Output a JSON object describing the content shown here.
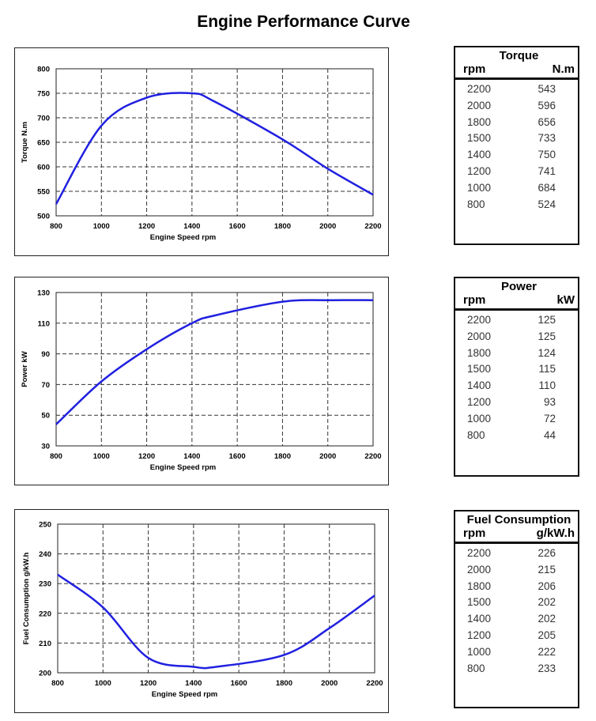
{
  "title": "Engine Performance Curve",
  "colors": {
    "curve": "#2020e0",
    "grid": "#333333"
  },
  "chart_data": [
    {
      "type": "line",
      "title": "",
      "xlabel": "Engine Speed rpm",
      "ylabel": "Torque N.m",
      "xlim": [
        800,
        2200
      ],
      "ylim": [
        500,
        800
      ],
      "xticks": [
        800,
        1000,
        1200,
        1400,
        1600,
        1800,
        2000,
        2200
      ],
      "yticks": [
        500,
        550,
        600,
        650,
        700,
        750,
        800
      ],
      "grid": true,
      "x": [
        800,
        1000,
        1200,
        1400,
        1500,
        1800,
        2000,
        2200
      ],
      "y": [
        524,
        684,
        741,
        750,
        733,
        656,
        596,
        543
      ]
    },
    {
      "type": "line",
      "title": "",
      "xlabel": "Engine Speed rpm",
      "ylabel": "Power kW",
      "xlim": [
        800,
        2200
      ],
      "ylim": [
        30,
        130
      ],
      "xticks": [
        800,
        1000,
        1200,
        1400,
        1600,
        1800,
        2000,
        2200
      ],
      "yticks": [
        30,
        50,
        70,
        90,
        110,
        130
      ],
      "grid": true,
      "x": [
        800,
        1000,
        1200,
        1400,
        1500,
        1800,
        2000,
        2200
      ],
      "y": [
        44,
        72,
        93,
        110,
        115,
        124,
        125,
        125
      ]
    },
    {
      "type": "line",
      "title": "",
      "xlabel": "Engine Speed rpm",
      "ylabel": "Fuel Consumption g/kW.h",
      "xlim": [
        800,
        2200
      ],
      "ylim": [
        200,
        250
      ],
      "xticks": [
        800,
        1000,
        1200,
        1400,
        1600,
        1800,
        2000,
        2200
      ],
      "yticks": [
        200,
        210,
        220,
        230,
        240,
        250
      ],
      "grid": true,
      "x": [
        800,
        1000,
        1200,
        1400,
        1500,
        1800,
        2000,
        2200
      ],
      "y": [
        233,
        222,
        205,
        202,
        202,
        206,
        215,
        226
      ]
    }
  ],
  "tables": [
    {
      "title": "Torque",
      "col1": "rpm",
      "col2": "N.m",
      "rows": [
        [
          "2200",
          "543"
        ],
        [
          "2000",
          "596"
        ],
        [
          "1800",
          "656"
        ],
        [
          "1500",
          "733"
        ],
        [
          "1400",
          "750"
        ],
        [
          "1200",
          "741"
        ],
        [
          "1000",
          "684"
        ],
        [
          "800",
          "524"
        ]
      ]
    },
    {
      "title": "Power",
      "col1": "rpm",
      "col2": "kW",
      "rows": [
        [
          "2200",
          "125"
        ],
        [
          "2000",
          "125"
        ],
        [
          "1800",
          "124"
        ],
        [
          "1500",
          "115"
        ],
        [
          "1400",
          "110"
        ],
        [
          "1200",
          "93"
        ],
        [
          "1000",
          "72"
        ],
        [
          "800",
          "44"
        ]
      ]
    },
    {
      "title": "Fuel Consumption",
      "col1": "rpm",
      "col2": "g/kW.h",
      "rows": [
        [
          "2200",
          "226"
        ],
        [
          "2000",
          "215"
        ],
        [
          "1800",
          "206"
        ],
        [
          "1500",
          "202"
        ],
        [
          "1400",
          "202"
        ],
        [
          "1200",
          "205"
        ],
        [
          "1000",
          "222"
        ],
        [
          "800",
          "233"
        ]
      ]
    }
  ]
}
